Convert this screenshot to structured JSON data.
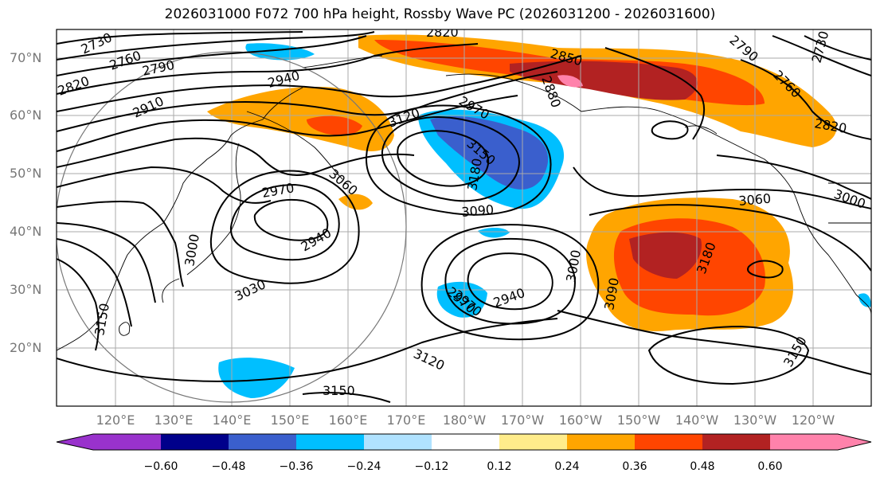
{
  "title": "2026031000 F072 700 hPa height, Rossby Wave PC (2026031200 - 2026031600)",
  "lat_labels": [
    "70°N",
    "60°N",
    "50°N",
    "40°N",
    "30°N",
    "20°N"
  ],
  "lon_labels": [
    "120°E",
    "130°E",
    "140°E",
    "150°E",
    "160°E",
    "170°E",
    "180°W",
    "170°W",
    "160°W",
    "150°W",
    "140°W",
    "130°W",
    "120°W"
  ],
  "colorbar": {
    "ticks": [
      "−0.60",
      "−0.48",
      "−0.36",
      "−0.24",
      "−0.12",
      "0.12",
      "0.24",
      "0.36",
      "0.48",
      "0.60"
    ],
    "colors": [
      "#9932cc",
      "#00008b",
      "#3a5fcd",
      "#00bfff",
      "#b0e2ff",
      "#ffffff",
      "#ffec8b",
      "#ffa500",
      "#ff4500",
      "#b22222",
      "#ff82ab"
    ]
  },
  "contour_labels": [
    "2730",
    "2760",
    "2790",
    "2820",
    "2910",
    "2940",
    "2820",
    "2850",
    "2880",
    "2790",
    "2760",
    "2730",
    "2820",
    "2970",
    "3120",
    "3150",
    "3180",
    "2970",
    "3060",
    "2970",
    "2940",
    "3000",
    "3030",
    "3090",
    "3060",
    "3000",
    "2970",
    "2940",
    "3000",
    "3090",
    "3180",
    "3150",
    "3120",
    "3150",
    "3150"
  ]
}
